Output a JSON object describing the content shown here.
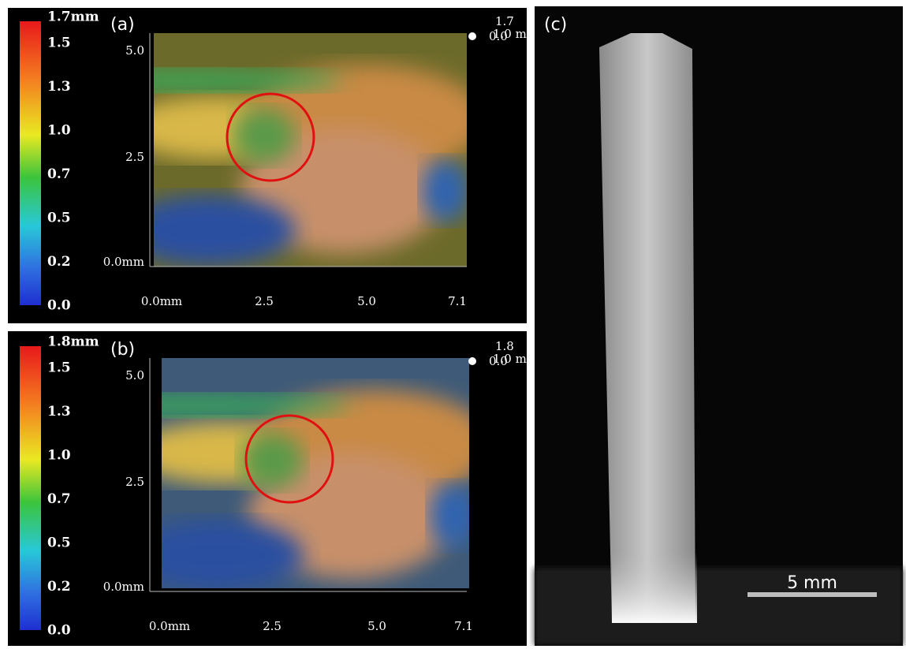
{
  "panels": [
    {
      "label": "(a)",
      "colorbar": [
        "1.7mm",
        "1.5",
        "1.3",
        "1.0",
        "0.7",
        "0.5",
        "0.2",
        "0.0"
      ],
      "y_axis": [
        "5.0",
        "2.5",
        "0.0mm"
      ],
      "x_axis": [
        "0.0mm",
        "2.5",
        "5.0",
        "7.1"
      ],
      "corner": [
        "1.7",
        "1.0 m",
        "0.0"
      ]
    },
    {
      "label": "(b)",
      "colorbar": [
        "1.8mm",
        "1.5",
        "1.3",
        "1.0",
        "0.7",
        "0.5",
        "0.2",
        "0.0"
      ],
      "y_axis": [
        "5.0",
        "2.5",
        "0.0mm"
      ],
      "x_axis": [
        "0.0mm",
        "2.5",
        "5.0",
        "7.1"
      ],
      "corner": [
        "1.8",
        "1.0 m",
        "0.0"
      ]
    }
  ],
  "panel_c": {
    "label": "(c)",
    "scale_bar": "5 mm"
  }
}
